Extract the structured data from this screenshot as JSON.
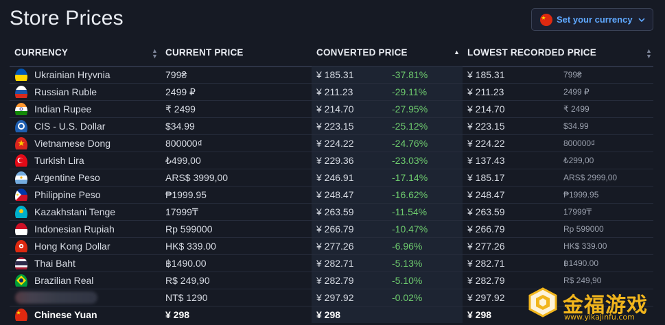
{
  "page": {
    "title": "Store Prices",
    "currency_button": {
      "label": "Set your currency",
      "flag": "cn",
      "icon": "chevron-down-icon"
    }
  },
  "table": {
    "headers": {
      "currency": "CURRENCY",
      "current_price": "CURRENT PRICE",
      "converted_price": "CONVERTED PRICE",
      "lowest_recorded_price": "LOWEST RECORDED PRICE"
    },
    "rows": [
      {
        "flag": "ua",
        "name": "Ukrainian Hryvnia",
        "current": "799₴",
        "converted": "¥ 185.31",
        "pct": "-37.81%",
        "lowest": "¥ 185.31",
        "lowest_src": "799₴"
      },
      {
        "flag": "ru",
        "name": "Russian Ruble",
        "current": "2499 ₽",
        "converted": "¥ 211.23",
        "pct": "-29.11%",
        "lowest": "¥ 211.23",
        "lowest_src": "2499 ₽"
      },
      {
        "flag": "in",
        "name": "Indian Rupee",
        "current": "₹ 2499",
        "converted": "¥ 214.70",
        "pct": "-27.95%",
        "lowest": "¥ 214.70",
        "lowest_src": "₹ 2499"
      },
      {
        "flag": "cis",
        "name": "CIS - U.S. Dollar",
        "current": "$34.99",
        "converted": "¥ 223.15",
        "pct": "-25.12%",
        "lowest": "¥ 223.15",
        "lowest_src": "$34.99"
      },
      {
        "flag": "vn",
        "name": "Vietnamese Dong",
        "current": "800000₫",
        "converted": "¥ 224.22",
        "pct": "-24.76%",
        "lowest": "¥ 224.22",
        "lowest_src": "800000₫"
      },
      {
        "flag": "tr",
        "name": "Turkish Lira",
        "current": "₺499,00",
        "converted": "¥ 229.36",
        "pct": "-23.03%",
        "lowest": "¥ 137.43",
        "lowest_src": "₺299,00"
      },
      {
        "flag": "ar",
        "name": "Argentine Peso",
        "current": "ARS$ 3999,00",
        "converted": "¥ 246.91",
        "pct": "-17.14%",
        "lowest": "¥ 185.17",
        "lowest_src": "ARS$ 2999,00"
      },
      {
        "flag": "ph",
        "name": "Philippine Peso",
        "current": "₱1999.95",
        "converted": "¥ 248.47",
        "pct": "-16.62%",
        "lowest": "¥ 248.47",
        "lowest_src": "₱1999.95"
      },
      {
        "flag": "kz",
        "name": "Kazakhstani Tenge",
        "current": "17999₸",
        "converted": "¥ 263.59",
        "pct": "-11.54%",
        "lowest": "¥ 263.59",
        "lowest_src": "17999₸"
      },
      {
        "flag": "id",
        "name": "Indonesian Rupiah",
        "current": "Rp 599000",
        "converted": "¥ 266.79",
        "pct": "-10.47%",
        "lowest": "¥ 266.79",
        "lowest_src": "Rp 599000"
      },
      {
        "flag": "hk",
        "name": "Hong Kong Dollar",
        "current": "HK$ 339.00",
        "converted": "¥ 277.26",
        "pct": "-6.96%",
        "lowest": "¥ 277.26",
        "lowest_src": "HK$ 339.00"
      },
      {
        "flag": "th",
        "name": "Thai Baht",
        "current": "฿1490.00",
        "converted": "¥ 282.71",
        "pct": "-5.13%",
        "lowest": "¥ 282.71",
        "lowest_src": "฿1490.00"
      },
      {
        "flag": "br",
        "name": "Brazilian Real",
        "current": "R$ 249,90",
        "converted": "¥ 282.79",
        "pct": "-5.10%",
        "lowest": "¥ 282.79",
        "lowest_src": "R$ 249,90"
      },
      {
        "flag": "blurred",
        "name": "",
        "current": "NT$ 1290",
        "converted": "¥ 297.92",
        "pct": "-0.02%",
        "lowest": "¥ 297.92",
        "lowest_src": ""
      }
    ],
    "total_row": {
      "flag": "cn",
      "name": "Chinese Yuan",
      "current": "¥ 298",
      "converted": "¥ 298",
      "pct": "",
      "lowest": "¥ 298",
      "lowest_src": ""
    }
  },
  "watermark": {
    "text": "金福游戏",
    "url": "www.yikajinfu.com"
  },
  "colors": {
    "background": "#161a24",
    "accent_link": "#5fa8ff",
    "positive_pct": "#6ecb6e",
    "watermark": "#f1b51c"
  }
}
